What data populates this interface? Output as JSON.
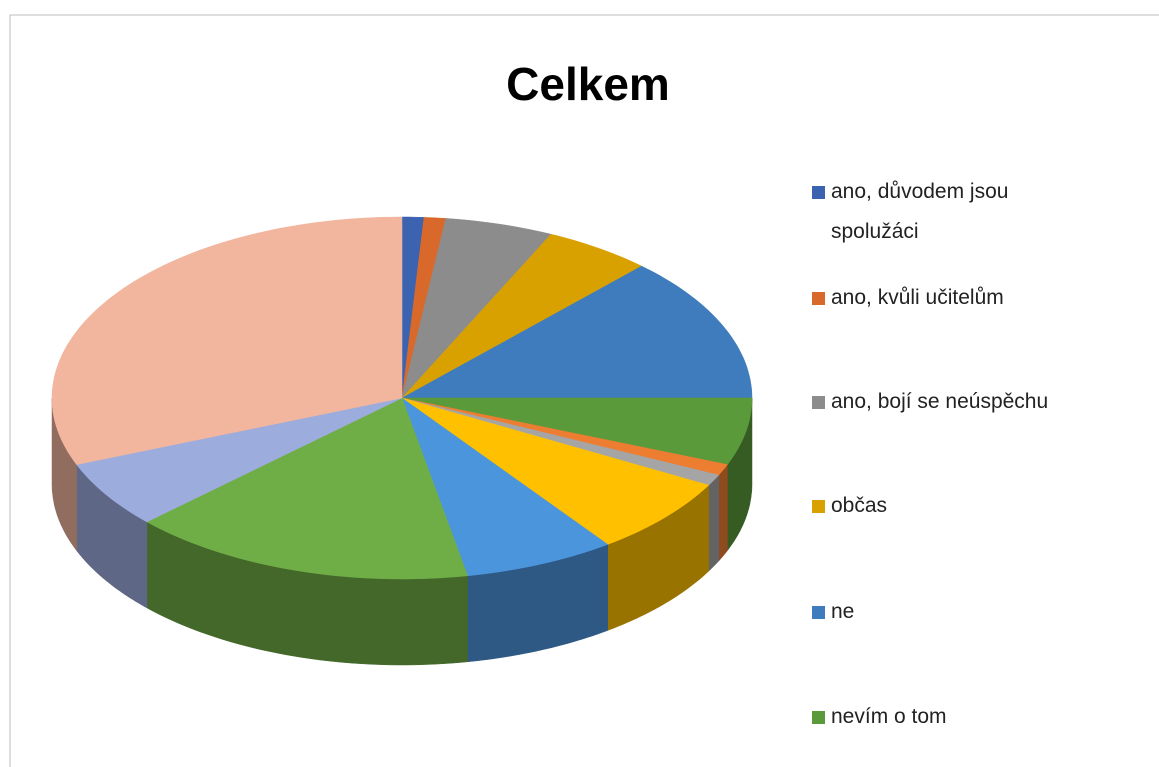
{
  "chart_data": {
    "type": "pie3d",
    "title": "Celkem",
    "categories": [
      "ano, důvodem jsou spolužáci",
      "ano, kvůli učitelům",
      "ano, bojí se neúspěchu",
      "občas",
      "ne",
      "nevím o tom",
      null,
      null,
      null,
      null,
      null,
      null,
      null
    ],
    "values": [
      1,
      1,
      5,
      5,
      13,
      6,
      1,
      1,
      7,
      7,
      16,
      6,
      31
    ],
    "colors": [
      "#3b63b0",
      "#d8692a",
      "#8c8c8c",
      "#d9a100",
      "#3f7cbd",
      "#5a9a3a",
      "#ed7d31",
      "#a5a5a5",
      "#ffc000",
      "#4b95dc",
      "#6fae46",
      "#9cacdd",
      "#f2b59e"
    ],
    "legend": "right"
  }
}
